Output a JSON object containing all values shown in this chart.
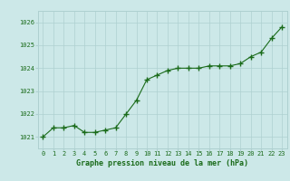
{
  "x": [
    0,
    1,
    2,
    3,
    4,
    5,
    6,
    7,
    8,
    9,
    10,
    11,
    12,
    13,
    14,
    15,
    16,
    17,
    18,
    19,
    20,
    21,
    22,
    23
  ],
  "y": [
    1021.0,
    1021.4,
    1021.4,
    1021.5,
    1021.2,
    1021.2,
    1021.3,
    1021.4,
    1022.0,
    1022.6,
    1023.5,
    1023.7,
    1023.9,
    1024.0,
    1024.0,
    1024.0,
    1024.1,
    1024.1,
    1024.1,
    1024.2,
    1024.5,
    1024.7,
    1025.3,
    1025.8
  ],
  "ylim": [
    1020.5,
    1026.5
  ],
  "yticks": [
    1021,
    1022,
    1023,
    1024,
    1025,
    1026
  ],
  "xticks": [
    0,
    1,
    2,
    3,
    4,
    5,
    6,
    7,
    8,
    9,
    10,
    11,
    12,
    13,
    14,
    15,
    16,
    17,
    18,
    19,
    20,
    21,
    22,
    23
  ],
  "line_color": "#1a6b1a",
  "marker_color": "#1a6b1a",
  "bg_color": "#cce8e8",
  "grid_color": "#aed0d0",
  "border_color": "#aed0d0",
  "xlabel": "Graphe pression niveau de la mer (hPa)",
  "xlabel_color": "#1a6b1a",
  "tick_color": "#1a6b1a",
  "figwidth": 3.2,
  "figheight": 2.0,
  "dpi": 100
}
